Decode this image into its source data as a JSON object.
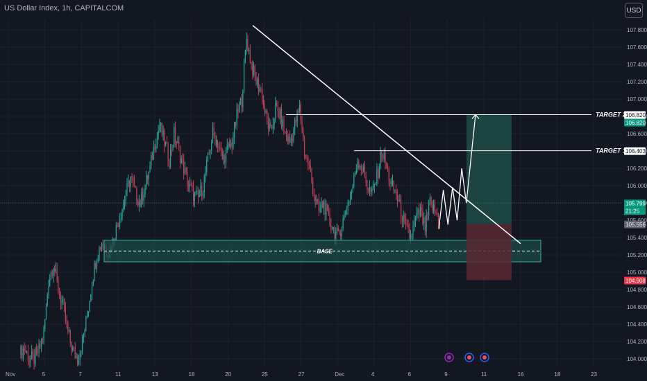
{
  "header": {
    "symbol_title": "US Dollar Index, 1h, CAPITALCOM",
    "currency_button": "USD"
  },
  "colors": {
    "bg": "#131722",
    "grid": "#1e222d",
    "text": "#b2b5be",
    "up": "#26a69a",
    "down": "#c2415a",
    "white": "#ffffff",
    "price_tag": "#089981",
    "stop_tag": "#f23645",
    "grey_tag": "#5d606b",
    "profit_zone": "#1f4d46",
    "loss_zone": "#5a2832",
    "base_zone": "#1c4b45"
  },
  "chart_data": {
    "type": "candlestick",
    "x_ticks": [
      "Nov",
      "5",
      "7",
      "11",
      "13",
      "18",
      "20",
      "25",
      "27",
      "Dec",
      "4",
      "6",
      "9",
      "11",
      "16",
      "18",
      "23"
    ],
    "y_ticks": [
      "107.800",
      "107.600",
      "107.400",
      "107.200",
      "107.000",
      "106.800",
      "106.600",
      "106.400",
      "106.200",
      "106.000",
      "105.800",
      "105.600",
      "105.400",
      "105.200",
      "105.000",
      "104.800",
      "104.600",
      "104.400",
      "104.200",
      "104.000"
    ],
    "ylim": [
      103.92,
      107.92
    ],
    "price_tags": [
      {
        "value": 106.82,
        "label": "106.820",
        "style": "white"
      },
      {
        "value": 106.82,
        "label": "106.820",
        "style": "green"
      },
      {
        "value": 106.403,
        "label": "106.403",
        "style": "white"
      },
      {
        "value": 105.799,
        "label": "105.799",
        "style": "green"
      },
      {
        "value": 105.799,
        "sub": "21:25",
        "style": "green"
      },
      {
        "value": 105.556,
        "label": "105.556",
        "style": "grey"
      },
      {
        "value": 104.908,
        "label": "104.908",
        "style": "red"
      }
    ],
    "annotations": {
      "target2": "TARGET 2",
      "target1": "TARGET 1",
      "base": "BASE"
    },
    "levels": {
      "target2": 106.82,
      "target1": 106.403,
      "entry": 105.556,
      "stop": 104.908,
      "base_top": 105.37,
      "base_bottom": 105.12,
      "base_mid": 105.245,
      "last": 105.799
    },
    "path": [
      104.05,
      104.12,
      104.0,
      104.0,
      104.1,
      104.3,
      104.9,
      105.1,
      104.8,
      104.6,
      104.3,
      104.1,
      104.0,
      104.2,
      104.5,
      104.9,
      105.2,
      105.35,
      105.25,
      105.3,
      105.5,
      105.7,
      105.9,
      106.1,
      105.9,
      105.8,
      106.0,
      106.2,
      106.5,
      106.7,
      106.5,
      106.3,
      106.6,
      106.4,
      106.2,
      106.0,
      105.9,
      105.85,
      106.0,
      106.3,
      106.6,
      106.5,
      106.3,
      106.4,
      106.5,
      106.8,
      107.0,
      107.7,
      107.4,
      107.2,
      107.1,
      106.8,
      106.6,
      106.9,
      106.8,
      106.6,
      106.5,
      106.7,
      106.9,
      106.4,
      106.2,
      105.9,
      105.7,
      105.8,
      105.6,
      105.5,
      105.4,
      105.6,
      105.8,
      106.0,
      106.3,
      106.2,
      106.0,
      105.9,
      106.1,
      106.4,
      106.2,
      106.0,
      105.9,
      105.7,
      105.5,
      105.4,
      105.6,
      105.7,
      105.5,
      105.8,
      105.7,
      105.6
    ],
    "projection": [
      [
        0,
        105.5
      ],
      [
        6,
        105.95
      ],
      [
        12,
        105.55
      ],
      [
        18,
        105.98
      ],
      [
        24,
        105.6
      ],
      [
        30,
        106.2
      ],
      [
        36,
        105.8
      ],
      [
        48,
        106.82
      ]
    ]
  }
}
